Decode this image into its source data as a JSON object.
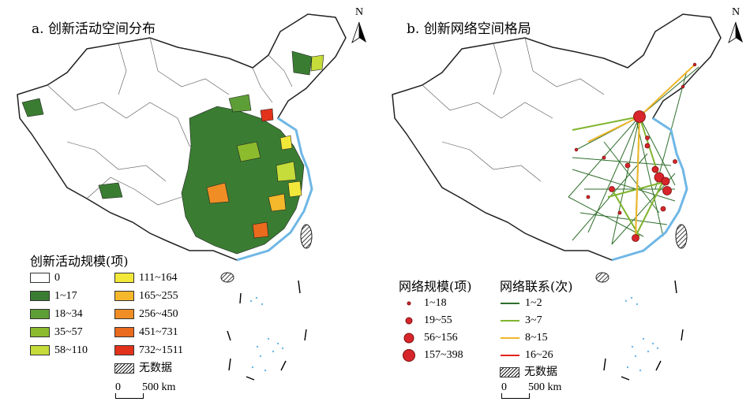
{
  "panel_a": {
    "title": "a. 创新活动空间分布",
    "north": "N",
    "legend_title": "创新活动规模(项)",
    "classes": [
      {
        "label": "0",
        "color": "#ffffff"
      },
      {
        "label": "1~17",
        "color": "#3a7d32"
      },
      {
        "label": "18~34",
        "color": "#5e9e36"
      },
      {
        "label": "35~57",
        "color": "#8dbb2e"
      },
      {
        "label": "58~110",
        "color": "#c5dc3a"
      },
      {
        "label": "111~164",
        "color": "#f2e83a"
      },
      {
        "label": "165~255",
        "color": "#f5b82c"
      },
      {
        "label": "256~450",
        "color": "#f08e25"
      },
      {
        "label": "451~731",
        "color": "#ea6a1e"
      },
      {
        "label": "732~1511",
        "color": "#e2321b"
      }
    ],
    "no_data": "无数据",
    "scale_zero": "0",
    "scale_label": "500 km"
  },
  "panel_b": {
    "title": "b. 创新网络空间格局",
    "north": "N",
    "size_legend_title": "网络规模(项)",
    "sizes": [
      {
        "label": "1~18",
        "diameter": 3
      },
      {
        "label": "19~55",
        "diameter": 7
      },
      {
        "label": "56~156",
        "diameter": 11
      },
      {
        "label": "157~398",
        "diameter": 15
      }
    ],
    "link_legend_title": "网络联系(次)",
    "links": [
      {
        "label": "1~2",
        "color": "#2f6e2b"
      },
      {
        "label": "3~7",
        "color": "#7fb42e"
      },
      {
        "label": "8~15",
        "color": "#f0b62c"
      },
      {
        "label": "16~26",
        "color": "#e2231a"
      }
    ],
    "no_data": "无数据",
    "scale_zero": "0",
    "scale_label": "500 km"
  },
  "colors": {
    "coast": "#6fb7e6",
    "boundary": "#333333",
    "node": "#d7262b"
  }
}
